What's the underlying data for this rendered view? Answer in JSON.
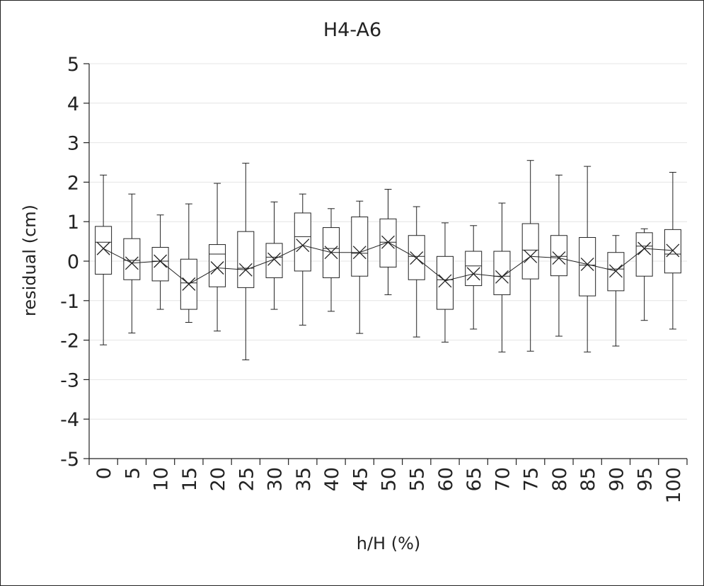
{
  "chart_data": {
    "type": "box",
    "title": "H4-A6",
    "xlabel": "h/H (%)",
    "ylabel": "residual (cm)",
    "ylim": [
      -5,
      5
    ],
    "yticks": [
      "5",
      "4",
      "3",
      "2",
      "1",
      "0",
      "-1",
      "-2",
      "-3",
      "-4",
      "-5"
    ],
    "grid": true,
    "categories": [
      "0",
      "5",
      "10",
      "15",
      "20",
      "25",
      "30",
      "35",
      "40",
      "45",
      "50",
      "55",
      "60",
      "65",
      "70",
      "75",
      "80",
      "85",
      "90",
      "95",
      "100"
    ],
    "boxes": [
      {
        "min": -2.12,
        "q1": -0.33,
        "median": 0.48,
        "q3": 0.88,
        "max": 2.18,
        "mean": 0.32
      },
      {
        "min": -1.82,
        "q1": -0.47,
        "median": 0.02,
        "q3": 0.57,
        "max": 1.7,
        "mean": -0.05
      },
      {
        "min": -1.22,
        "q1": -0.5,
        "median": 0.0,
        "q3": 0.35,
        "max": 1.17,
        "mean": 0.0
      },
      {
        "min": -1.55,
        "q1": -1.22,
        "median": -0.55,
        "q3": 0.05,
        "max": 1.45,
        "mean": -0.58
      },
      {
        "min": -1.77,
        "q1": -0.65,
        "median": 0.18,
        "q3": 0.42,
        "max": 1.97,
        "mean": -0.17
      },
      {
        "min": -2.5,
        "q1": -0.67,
        "median": -0.18,
        "q3": 0.75,
        "max": 2.48,
        "mean": -0.22
      },
      {
        "min": -1.22,
        "q1": -0.42,
        "median": 0.1,
        "q3": 0.45,
        "max": 1.5,
        "mean": 0.05
      },
      {
        "min": -1.62,
        "q1": -0.25,
        "median": 0.62,
        "q3": 1.22,
        "max": 1.7,
        "mean": 0.4
      },
      {
        "min": -1.27,
        "q1": -0.42,
        "median": 0.32,
        "q3": 0.85,
        "max": 1.33,
        "mean": 0.22
      },
      {
        "min": -1.83,
        "q1": -0.38,
        "median": 0.2,
        "q3": 1.12,
        "max": 1.52,
        "mean": 0.22
      },
      {
        "min": -0.85,
        "q1": -0.15,
        "median": 0.48,
        "q3": 1.07,
        "max": 1.82,
        "mean": 0.48
      },
      {
        "min": -1.92,
        "q1": -0.47,
        "median": 0.12,
        "q3": 0.65,
        "max": 1.38,
        "mean": 0.08
      },
      {
        "min": -2.05,
        "q1": -1.22,
        "median": -0.47,
        "q3": 0.12,
        "max": 0.97,
        "mean": -0.5
      },
      {
        "min": -1.72,
        "q1": -0.62,
        "median": -0.12,
        "q3": 0.25,
        "max": 0.9,
        "mean": -0.32
      },
      {
        "min": -2.3,
        "q1": -0.85,
        "median": -0.38,
        "q3": 0.25,
        "max": 1.47,
        "mean": -0.4
      },
      {
        "min": -2.28,
        "q1": -0.45,
        "median": 0.28,
        "q3": 0.95,
        "max": 2.55,
        "mean": 0.12
      },
      {
        "min": -1.9,
        "q1": -0.37,
        "median": 0.12,
        "q3": 0.65,
        "max": 2.18,
        "mean": 0.08
      },
      {
        "min": -2.3,
        "q1": -0.88,
        "median": -0.1,
        "q3": 0.6,
        "max": 2.4,
        "mean": -0.08
      },
      {
        "min": -2.15,
        "q1": -0.75,
        "median": -0.2,
        "q3": 0.22,
        "max": 0.65,
        "mean": -0.25
      },
      {
        "min": -1.5,
        "q1": -0.38,
        "median": 0.38,
        "q3": 0.72,
        "max": 0.82,
        "mean": 0.32
      },
      {
        "min": -1.72,
        "q1": -0.3,
        "median": 0.18,
        "q3": 0.8,
        "max": 2.25,
        "mean": 0.27
      }
    ]
  }
}
